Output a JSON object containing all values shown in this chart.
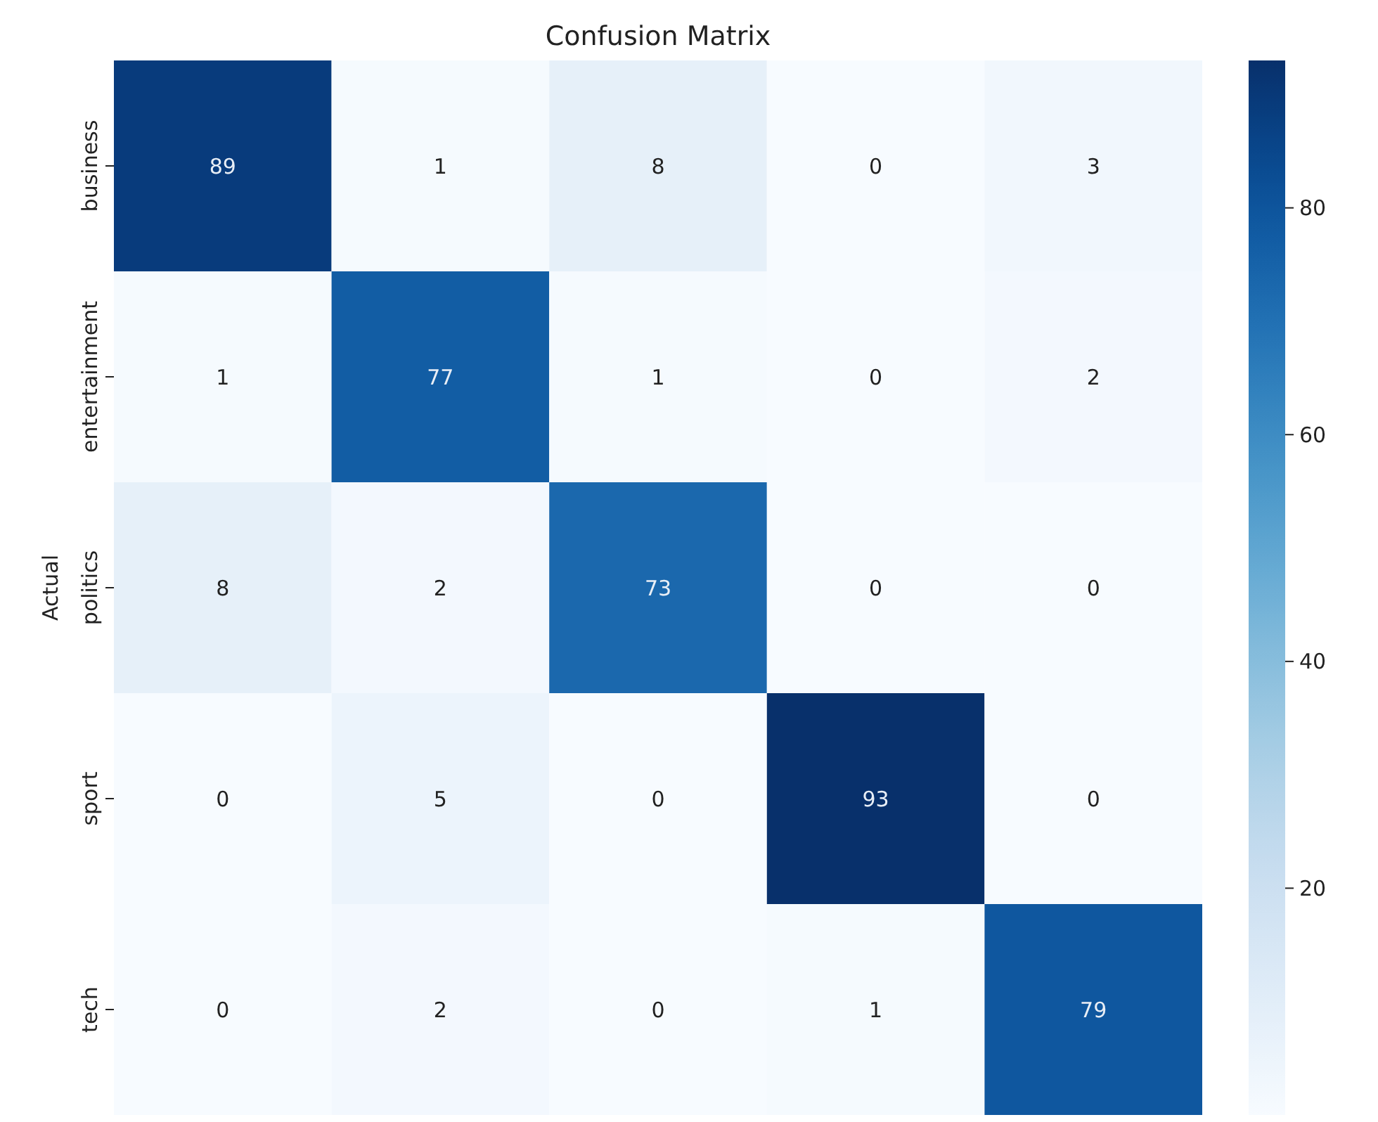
{
  "chart_data": {
    "type": "heatmap",
    "title": "Confusion Matrix",
    "ylabel": "Actual",
    "categories": [
      null,
      null,
      null,
      null,
      null
    ],
    "y_categories": [
      "business",
      "entertainment",
      "politics",
      "sport",
      "tech"
    ],
    "cells": [
      [
        89,
        1,
        8,
        0,
        3
      ],
      [
        1,
        77,
        1,
        0,
        2
      ],
      [
        8,
        2,
        73,
        0,
        0
      ],
      [
        0,
        5,
        0,
        93,
        0
      ],
      [
        0,
        2,
        0,
        1,
        79
      ]
    ],
    "data_labels": true,
    "clim": [
      0,
      93
    ],
    "cticks": [
      20,
      40,
      60,
      80
    ],
    "tick_labels": "y"
  }
}
